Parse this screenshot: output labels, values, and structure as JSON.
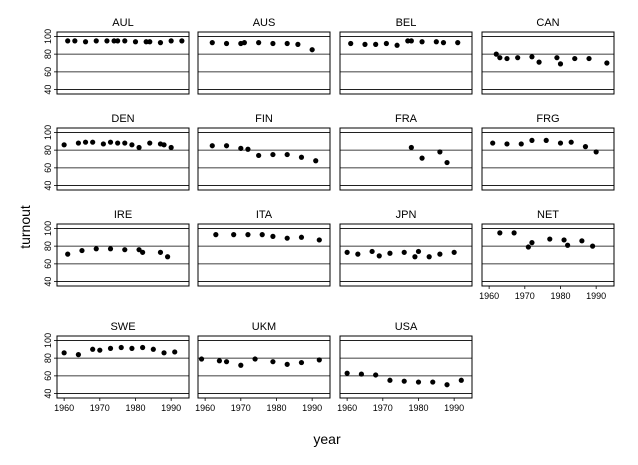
{
  "chart_data": {
    "type": "scatter",
    "xlabel": "year",
    "ylabel": "turnout",
    "xlim": [
      1958,
      1995
    ],
    "ylim": [
      35,
      105
    ],
    "x_ticks": [
      1960,
      1970,
      1980,
      1990
    ],
    "x_tick_labels": [
      "1960",
      "1970",
      "1980",
      "1990"
    ],
    "y_ticks": [
      40,
      60,
      80,
      100
    ],
    "y_tick_labels": [
      "40",
      "60",
      "80",
      "100"
    ],
    "grid": "horizontal",
    "facets": [
      {
        "name": "AUL",
        "points": [
          [
            1961,
            95
          ],
          [
            1963,
            95
          ],
          [
            1966,
            94
          ],
          [
            1969,
            95
          ],
          [
            1972,
            95
          ],
          [
            1974,
            95
          ],
          [
            1975,
            95
          ],
          [
            1977,
            95
          ],
          [
            1980,
            94
          ],
          [
            1983,
            94
          ],
          [
            1984,
            94
          ],
          [
            1987,
            93
          ],
          [
            1990,
            95
          ],
          [
            1993,
            95
          ]
        ]
      },
      {
        "name": "AUS",
        "points": [
          [
            1962,
            93
          ],
          [
            1966,
            92
          ],
          [
            1970,
            92
          ],
          [
            1971,
            93
          ],
          [
            1975,
            93
          ],
          [
            1979,
            92
          ],
          [
            1983,
            92
          ],
          [
            1986,
            91
          ],
          [
            1990,
            85
          ]
        ]
      },
      {
        "name": "BEL",
        "points": [
          [
            1961,
            92
          ],
          [
            1965,
            91
          ],
          [
            1968,
            91
          ],
          [
            1971,
            92
          ],
          [
            1974,
            90
          ],
          [
            1977,
            95
          ],
          [
            1978,
            95
          ],
          [
            1981,
            94
          ],
          [
            1985,
            94
          ],
          [
            1987,
            93
          ],
          [
            1991,
            93
          ]
        ]
      },
      {
        "name": "CAN",
        "points": [
          [
            1962,
            80
          ],
          [
            1963,
            76
          ],
          [
            1965,
            75
          ],
          [
            1968,
            76
          ],
          [
            1972,
            77
          ],
          [
            1974,
            71
          ],
          [
            1979,
            76
          ],
          [
            1980,
            69
          ],
          [
            1984,
            75
          ],
          [
            1988,
            75
          ],
          [
            1993,
            70
          ]
        ]
      },
      {
        "name": "DEN",
        "points": [
          [
            1960,
            86
          ],
          [
            1964,
            88
          ],
          [
            1966,
            89
          ],
          [
            1968,
            89
          ],
          [
            1971,
            87
          ],
          [
            1973,
            89
          ],
          [
            1975,
            88
          ],
          [
            1977,
            88
          ],
          [
            1979,
            86
          ],
          [
            1981,
            83
          ],
          [
            1984,
            88
          ],
          [
            1987,
            87
          ],
          [
            1988,
            86
          ],
          [
            1990,
            83
          ]
        ]
      },
      {
        "name": "FIN",
        "points": [
          [
            1962,
            85
          ],
          [
            1966,
            85
          ],
          [
            1970,
            82
          ],
          [
            1972,
            81
          ],
          [
            1975,
            74
          ],
          [
            1979,
            75
          ],
          [
            1983,
            75
          ],
          [
            1987,
            72
          ],
          [
            1991,
            68
          ]
        ]
      },
      {
        "name": "FRA",
        "points": [
          [
            1978,
            83
          ],
          [
            1981,
            71
          ],
          [
            1986,
            78
          ],
          [
            1988,
            66
          ]
        ]
      },
      {
        "name": "FRG",
        "points": [
          [
            1961,
            88
          ],
          [
            1965,
            87
          ],
          [
            1969,
            87
          ],
          [
            1972,
            91
          ],
          [
            1976,
            91
          ],
          [
            1980,
            88
          ],
          [
            1983,
            89
          ],
          [
            1987,
            84
          ],
          [
            1990,
            78
          ]
        ]
      },
      {
        "name": "IRE",
        "points": [
          [
            1961,
            71
          ],
          [
            1965,
            75
          ],
          [
            1969,
            77
          ],
          [
            1973,
            77
          ],
          [
            1977,
            76
          ],
          [
            1981,
            76
          ],
          [
            1982,
            73
          ],
          [
            1987,
            73
          ],
          [
            1989,
            68
          ]
        ]
      },
      {
        "name": "ITA",
        "points": [
          [
            1963,
            93
          ],
          [
            1968,
            93
          ],
          [
            1972,
            93
          ],
          [
            1976,
            93
          ],
          [
            1979,
            91
          ],
          [
            1983,
            89
          ],
          [
            1987,
            90
          ],
          [
            1992,
            87
          ]
        ]
      },
      {
        "name": "JPN",
        "points": [
          [
            1960,
            73
          ],
          [
            1963,
            71
          ],
          [
            1967,
            74
          ],
          [
            1969,
            69
          ],
          [
            1972,
            72
          ],
          [
            1976,
            73
          ],
          [
            1979,
            68
          ],
          [
            1980,
            74
          ],
          [
            1983,
            68
          ],
          [
            1986,
            71
          ],
          [
            1990,
            73
          ]
        ]
      },
      {
        "name": "NET",
        "points": [
          [
            1963,
            95
          ],
          [
            1967,
            95
          ],
          [
            1971,
            79
          ],
          [
            1972,
            84
          ],
          [
            1977,
            88
          ],
          [
            1981,
            87
          ],
          [
            1982,
            81
          ],
          [
            1986,
            86
          ],
          [
            1989,
            80
          ]
        ]
      },
      {
        "name": "SWE",
        "points": [
          [
            1960,
            86
          ],
          [
            1964,
            84
          ],
          [
            1968,
            90
          ],
          [
            1970,
            89
          ],
          [
            1973,
            91
          ],
          [
            1976,
            92
          ],
          [
            1979,
            91
          ],
          [
            1982,
            92
          ],
          [
            1985,
            90
          ],
          [
            1988,
            86
          ],
          [
            1991,
            87
          ]
        ]
      },
      {
        "name": "UKM",
        "points": [
          [
            1959,
            79
          ],
          [
            1964,
            77
          ],
          [
            1966,
            76
          ],
          [
            1970,
            72
          ],
          [
            1974,
            79
          ],
          [
            1979,
            76
          ],
          [
            1983,
            73
          ],
          [
            1987,
            75
          ],
          [
            1992,
            78
          ]
        ]
      },
      {
        "name": "USA",
        "points": [
          [
            1960,
            63
          ],
          [
            1964,
            62
          ],
          [
            1968,
            61
          ],
          [
            1972,
            55
          ],
          [
            1976,
            54
          ],
          [
            1980,
            53
          ],
          [
            1984,
            53
          ],
          [
            1988,
            50
          ],
          [
            1992,
            55
          ]
        ]
      }
    ]
  }
}
